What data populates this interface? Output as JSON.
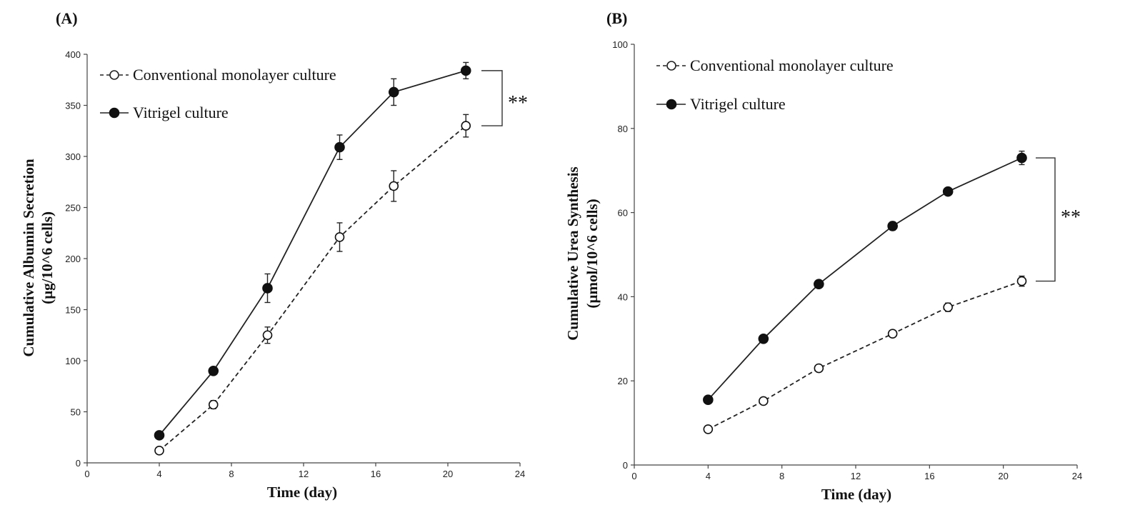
{
  "chart_data": [
    {
      "panel": "(A)",
      "type": "line",
      "xlabel": "Time (day)",
      "ylabel_line1": "Cumulative Albumin Secretion",
      "ylabel_line2": "(µg/10^6 cells)",
      "xlim": [
        0,
        24
      ],
      "ylim": [
        0,
        400
      ],
      "xticks": [
        0,
        4,
        8,
        12,
        16,
        20,
        24
      ],
      "yticks": [
        0,
        50,
        100,
        150,
        200,
        250,
        300,
        350,
        400
      ],
      "legend_position": "top-left",
      "significance": "**",
      "series": [
        {
          "name": "Conventional monolayer culture",
          "style": "dashed-open-circle",
          "x": [
            4,
            7,
            10,
            14,
            17,
            21
          ],
          "y": [
            12,
            57,
            125,
            221,
            271,
            330
          ],
          "err": [
            3,
            4,
            8,
            14,
            15,
            11
          ]
        },
        {
          "name": "Vitrigel culture",
          "style": "solid-filled-circle",
          "x": [
            4,
            7,
            10,
            14,
            17,
            21
          ],
          "y": [
            27,
            90,
            171,
            309,
            363,
            384
          ],
          "err": [
            2,
            3,
            14,
            12,
            13,
            8
          ]
        }
      ]
    },
    {
      "panel": "(B)",
      "type": "line",
      "xlabel": "Time (day)",
      "ylabel_line1": "Cumulative Urea Synthesis",
      "ylabel_line2": "(µmol/10^6 cells)",
      "xlim": [
        0,
        24
      ],
      "ylim": [
        0,
        100
      ],
      "xticks": [
        0,
        4,
        8,
        12,
        16,
        20,
        24
      ],
      "yticks": [
        0,
        20,
        40,
        60,
        80,
        100
      ],
      "legend_position": "top-left",
      "significance": "**",
      "series": [
        {
          "name": "Conventional monolayer culture",
          "style": "dashed-open-circle",
          "x": [
            4,
            7,
            10,
            14,
            17,
            21
          ],
          "y": [
            8.5,
            15.2,
            23.0,
            31.2,
            37.5,
            43.7
          ],
          "err": [
            0.8,
            0.6,
            0.7,
            0.8,
            1.0,
            1.2
          ]
        },
        {
          "name": "Vitrigel culture",
          "style": "solid-filled-circle",
          "x": [
            4,
            7,
            10,
            14,
            17,
            21
          ],
          "y": [
            15.5,
            30.0,
            43.0,
            56.8,
            65.0,
            73.0
          ],
          "err": [
            0.6,
            0.6,
            0.8,
            1.0,
            0.8,
            1.6
          ]
        }
      ]
    }
  ]
}
